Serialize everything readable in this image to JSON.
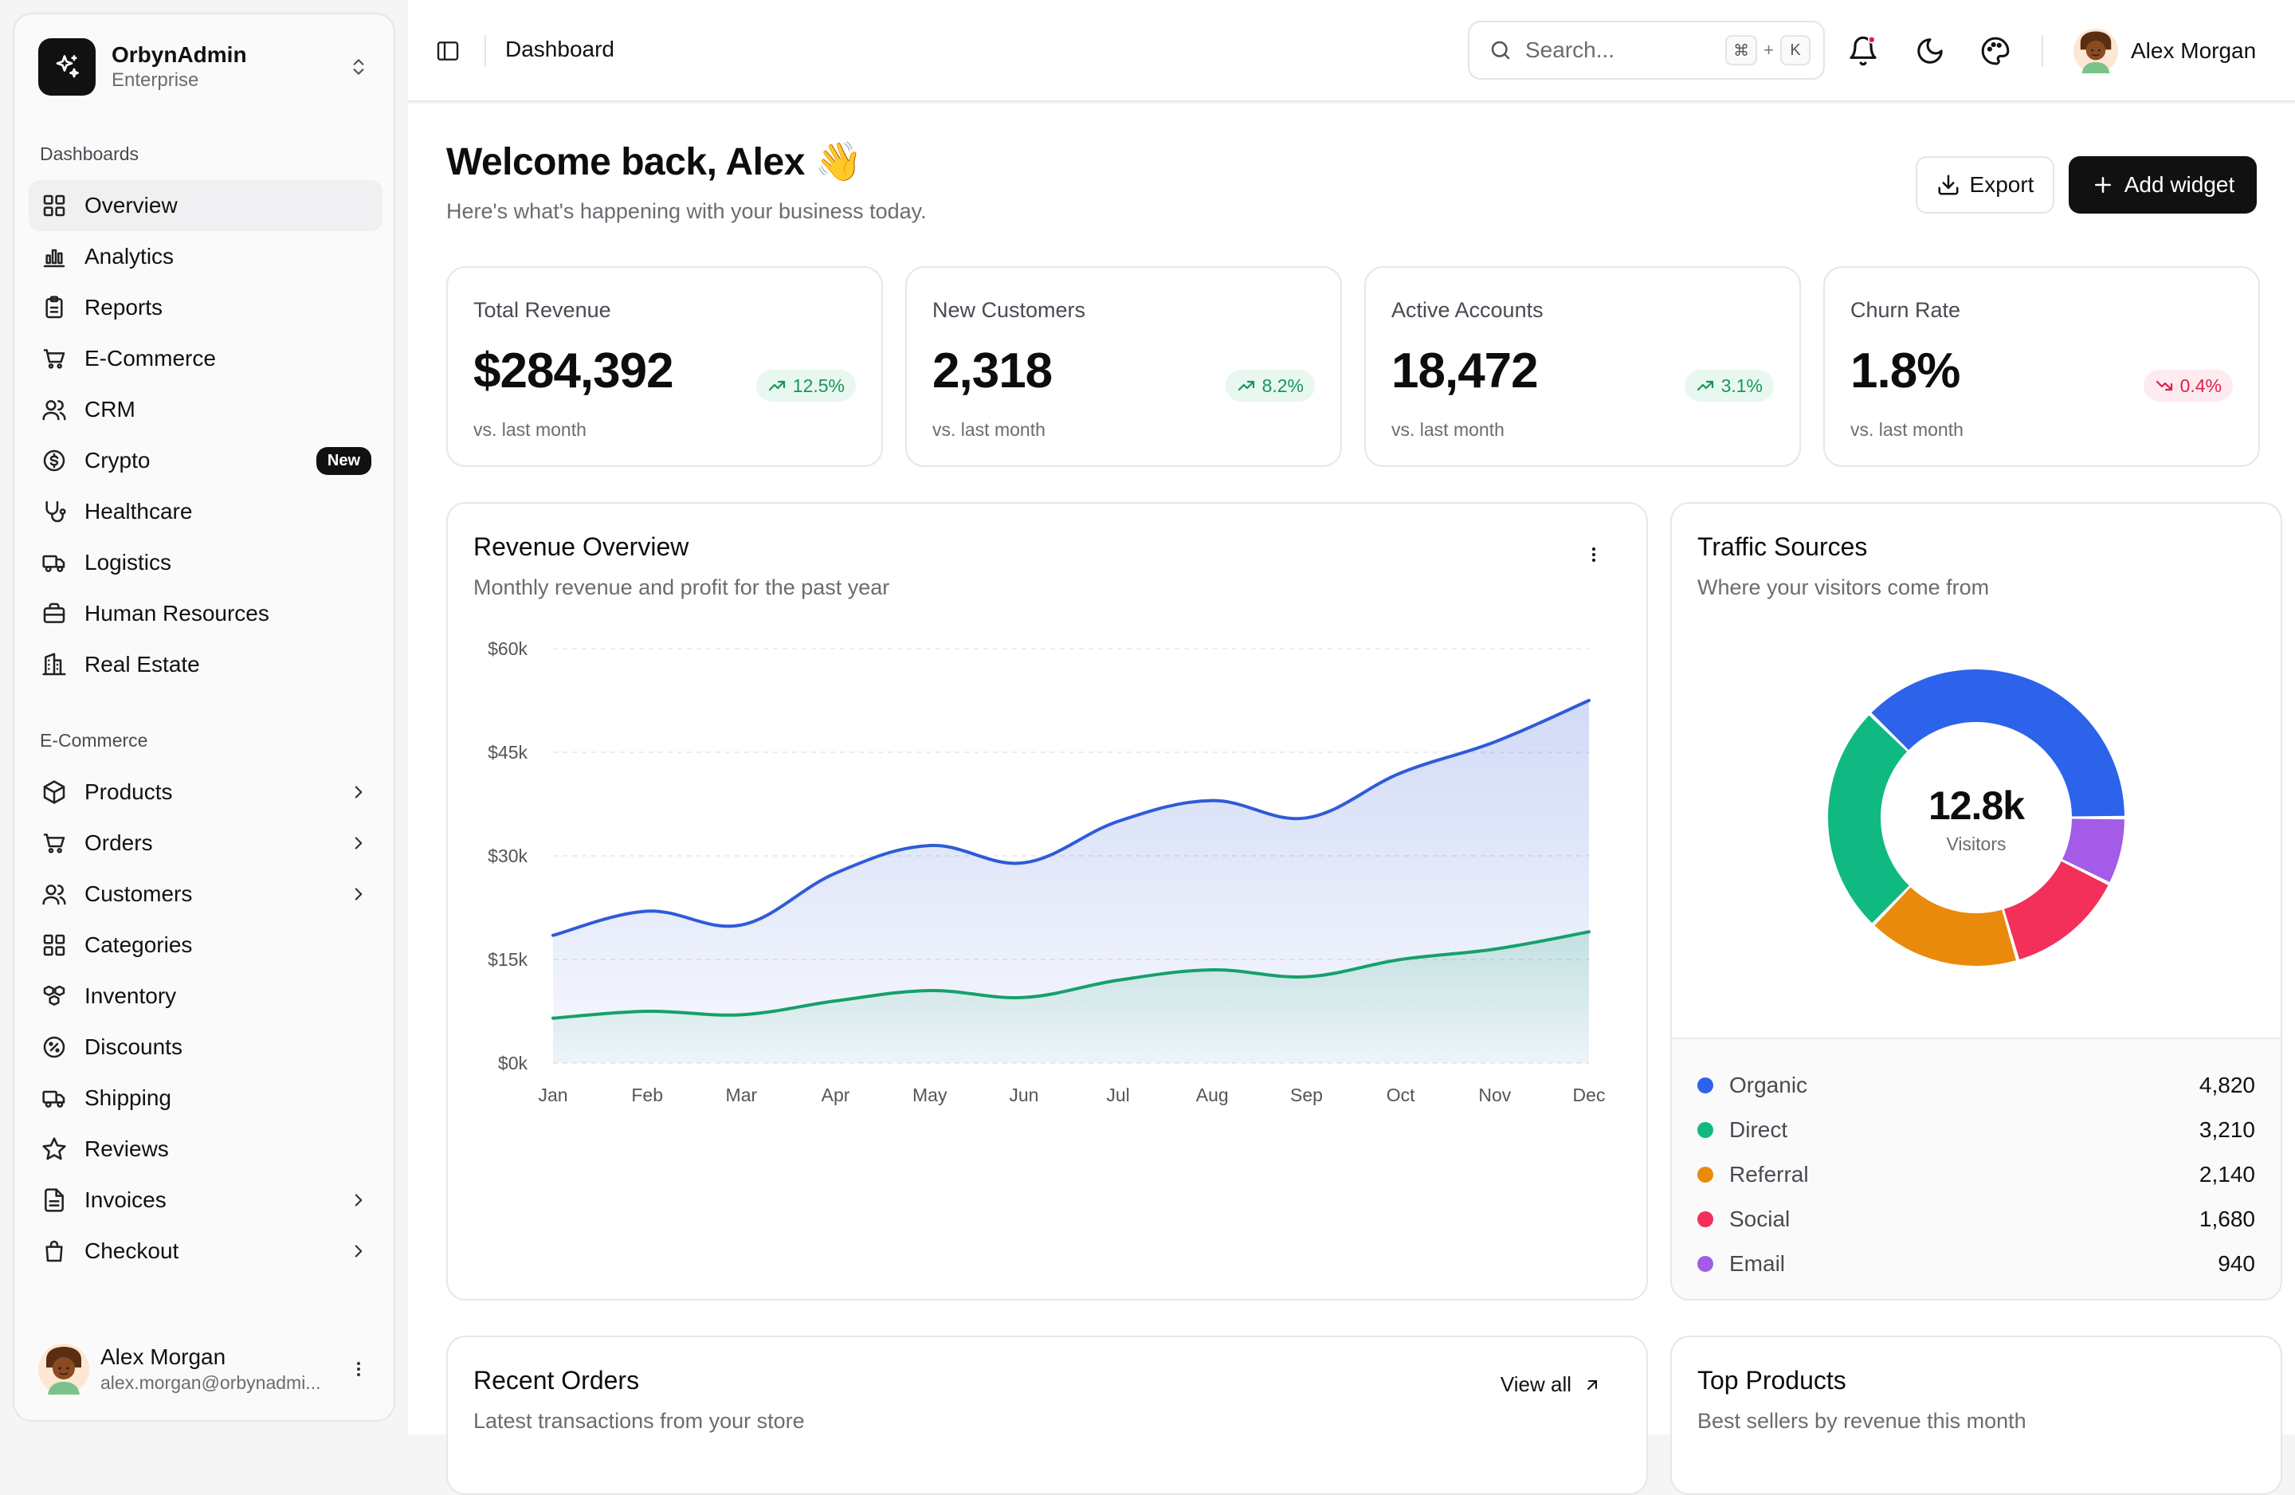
{
  "org": {
    "name": "OrbynAdmin",
    "plan": "Enterprise"
  },
  "sidebar": {
    "dashboards_label": "Dashboards",
    "dashboards": [
      {
        "label": "Overview",
        "icon": "layout-grid-icon"
      },
      {
        "label": "Analytics",
        "icon": "bar-chart-icon"
      },
      {
        "label": "Reports",
        "icon": "clipboard-icon"
      },
      {
        "label": "E-Commerce",
        "icon": "cart-icon"
      },
      {
        "label": "CRM",
        "icon": "users-icon"
      },
      {
        "label": "Crypto",
        "icon": "coin-icon",
        "badge": "New"
      },
      {
        "label": "Healthcare",
        "icon": "stethoscope-icon"
      },
      {
        "label": "Logistics",
        "icon": "truck-icon"
      },
      {
        "label": "Human Resources",
        "icon": "briefcase-icon"
      },
      {
        "label": "Real Estate",
        "icon": "building-icon"
      }
    ],
    "ecommerce_label": "E-Commerce",
    "ecommerce": [
      {
        "label": "Products",
        "icon": "box-icon",
        "chevron": true
      },
      {
        "label": "Orders",
        "icon": "cart-icon",
        "chevron": true
      },
      {
        "label": "Customers",
        "icon": "users-icon",
        "chevron": true
      },
      {
        "label": "Categories",
        "icon": "layout-grid-icon",
        "chevron": false
      },
      {
        "label": "Inventory",
        "icon": "boxes-icon",
        "chevron": false
      },
      {
        "label": "Discounts",
        "icon": "percent-badge-icon",
        "chevron": false
      },
      {
        "label": "Shipping",
        "icon": "truck-icon",
        "chevron": false
      },
      {
        "label": "Reviews",
        "icon": "star-icon",
        "chevron": false
      },
      {
        "label": "Invoices",
        "icon": "file-text-icon",
        "chevron": true
      },
      {
        "label": "Checkout",
        "icon": "shopping-bag-icon",
        "chevron": true
      }
    ],
    "user": {
      "name": "Alex Morgan",
      "email": "alex.morgan@orbynadmi..."
    }
  },
  "header": {
    "title": "Dashboard",
    "search_placeholder": "Search...",
    "shortcut_mod": "⌘",
    "shortcut_plus": "+",
    "shortcut_key": "K",
    "user_name": "Alex Morgan",
    "notification_dot_color": "#e11d48"
  },
  "welcome": {
    "title": "Welcome back, Alex 👋",
    "subtitle": "Here's what's happening with your business today.",
    "export_label": "Export",
    "add_widget_label": "Add widget"
  },
  "stats": [
    {
      "label": "Total Revenue",
      "value": "$284,392",
      "change": "12.5%",
      "trend": "up",
      "sub": "vs. last month"
    },
    {
      "label": "New Customers",
      "value": "2,318",
      "change": "8.2%",
      "trend": "up",
      "sub": "vs. last month"
    },
    {
      "label": "Active Accounts",
      "value": "18,472",
      "change": "3.1%",
      "trend": "up",
      "sub": "vs. last month"
    },
    {
      "label": "Churn Rate",
      "value": "1.8%",
      "change": "0.4%",
      "trend": "down",
      "sub": "vs. last month"
    }
  ],
  "revenue_card": {
    "title": "Revenue Overview",
    "subtitle": "Monthly revenue and profit for the past year"
  },
  "traffic_card": {
    "title": "Traffic Sources",
    "subtitle": "Where your visitors come from",
    "center_value": "12.8k",
    "center_label": "Visitors"
  },
  "orders_card": {
    "title": "Recent Orders",
    "subtitle": "Latest transactions from your store",
    "view_all": "View all"
  },
  "products_card": {
    "title": "Top Products",
    "subtitle": "Best sellers by revenue this month"
  },
  "chart_data": [
    {
      "type": "area",
      "categories": [
        "Jan",
        "Feb",
        "Mar",
        "Apr",
        "May",
        "Jun",
        "Jul",
        "Aug",
        "Sep",
        "Oct",
        "Nov",
        "Dec"
      ],
      "series": [
        {
          "values": [
            18500,
            22000,
            20000,
            27500,
            31500,
            29000,
            35000,
            38000,
            35500,
            42000,
            46500,
            52500
          ],
          "color": "#2f5bd8"
        },
        {
          "values": [
            6500,
            7500,
            7000,
            9000,
            10500,
            9500,
            12000,
            13500,
            12500,
            15000,
            16500,
            19000
          ],
          "color": "#16a06b"
        }
      ],
      "y_ticks": [
        "$0k",
        "$15k",
        "$30k",
        "$45k",
        "$60k"
      ],
      "ylim": [
        0,
        60000
      ],
      "grid": true
    },
    {
      "type": "pie",
      "categories": [
        "Organic",
        "Direct",
        "Referral",
        "Social",
        "Email"
      ],
      "values": [
        4820,
        3210,
        2140,
        1680,
        940
      ],
      "values_label": [
        "4,820",
        "3,210",
        "2,140",
        "1,680",
        "940"
      ],
      "colors": [
        "#2d63ea",
        "#10b981",
        "#ea8a0c",
        "#f2305a",
        "#a35be8"
      ],
      "donut": true
    }
  ]
}
